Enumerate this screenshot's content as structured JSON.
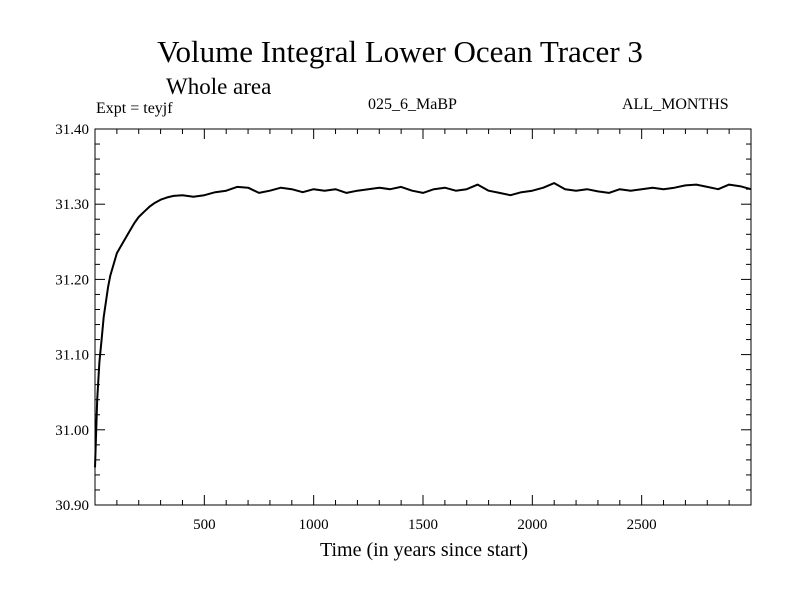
{
  "header": {
    "title": "Volume Integral Lower Ocean Tracer 3",
    "subtitle": "Whole area",
    "expt": "Expt = teyjf",
    "run": "025_6_MaBP",
    "months": "ALL_MONTHS"
  },
  "chart_data": {
    "type": "line",
    "title": "Volume Integral Lower Ocean Tracer 3",
    "subtitle": "Whole area",
    "xlabel": "Time (in years since start)",
    "ylabel": "",
    "xlim": [
      0,
      3000
    ],
    "ylim": [
      30.9,
      31.4
    ],
    "x_ticks": [
      500,
      1000,
      1500,
      2000,
      2500
    ],
    "x_tick_labels": [
      "500",
      "1000",
      "1500",
      "2000",
      "2500"
    ],
    "y_ticks": [
      30.9,
      31.0,
      31.1,
      31.2,
      31.3,
      31.4
    ],
    "y_tick_labels": [
      "30.90",
      "31.00",
      "31.10",
      "31.20",
      "31.30",
      "31.40"
    ],
    "grid": false,
    "series": [
      {
        "name": "Lower Ocean Tracer 3",
        "color": "#000000",
        "x": [
          0,
          10,
          20,
          30,
          40,
          50,
          60,
          70,
          80,
          90,
          100,
          120,
          140,
          160,
          180,
          200,
          225,
          250,
          275,
          300,
          330,
          360,
          400,
          450,
          500,
          550,
          600,
          650,
          700,
          750,
          800,
          850,
          900,
          950,
          1000,
          1050,
          1100,
          1150,
          1200,
          1250,
          1300,
          1350,
          1400,
          1450,
          1500,
          1550,
          1600,
          1650,
          1700,
          1750,
          1800,
          1850,
          1900,
          1950,
          2000,
          2050,
          2100,
          2150,
          2200,
          2250,
          2300,
          2350,
          2400,
          2450,
          2500,
          2550,
          2600,
          2650,
          2700,
          2750,
          2800,
          2850,
          2900,
          2950,
          3000
        ],
        "values": [
          30.95,
          31.04,
          31.09,
          31.12,
          31.15,
          31.17,
          31.19,
          31.205,
          31.215,
          31.225,
          31.235,
          31.245,
          31.255,
          31.265,
          31.275,
          31.283,
          31.29,
          31.297,
          31.302,
          31.306,
          31.309,
          31.311,
          31.312,
          31.31,
          31.312,
          31.316,
          31.318,
          31.323,
          31.322,
          31.315,
          31.318,
          31.322,
          31.32,
          31.316,
          31.32,
          31.318,
          31.32,
          31.315,
          31.318,
          31.32,
          31.322,
          31.32,
          31.323,
          31.318,
          31.315,
          31.32,
          31.322,
          31.318,
          31.32,
          31.326,
          31.318,
          31.315,
          31.312,
          31.316,
          31.318,
          31.322,
          31.328,
          31.32,
          31.318,
          31.32,
          31.317,
          31.315,
          31.32,
          31.318,
          31.32,
          31.322,
          31.32,
          31.322,
          31.325,
          31.326,
          31.323,
          31.32,
          31.326,
          31.324,
          31.32
        ]
      }
    ]
  }
}
